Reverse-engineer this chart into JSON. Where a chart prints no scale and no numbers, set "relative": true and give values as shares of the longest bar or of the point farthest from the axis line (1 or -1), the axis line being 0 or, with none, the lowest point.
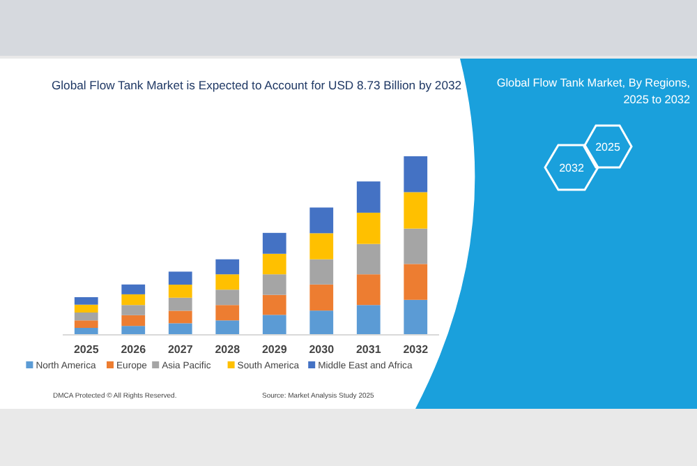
{
  "chart_data": {
    "type": "bar",
    "stacked": true,
    "relative": true,
    "title": "Global Flow Tank Market is Expected to Account for USD 8.73 Billion by 2032",
    "subtitle": "Global Flow Tank Market, By Regions, 2025 to 2032",
    "categories": [
      "2025",
      "2026",
      "2027",
      "2028",
      "2029",
      "2030",
      "2031",
      "2032"
    ],
    "series": [
      {
        "name": "North America",
        "color": "#5b9bd5",
        "values": [
          0.039,
          0.05,
          0.065,
          0.081,
          0.112,
          0.136,
          0.167,
          0.196
        ]
      },
      {
        "name": "Europe",
        "color": "#ed7d31",
        "values": [
          0.042,
          0.06,
          0.07,
          0.086,
          0.112,
          0.146,
          0.172,
          0.201
        ]
      },
      {
        "name": "Asia Pacific",
        "color": "#a5a5a5",
        "values": [
          0.044,
          0.057,
          0.073,
          0.086,
          0.115,
          0.141,
          0.17,
          0.198
        ]
      },
      {
        "name": "South America",
        "color": "#ffc000",
        "values": [
          0.044,
          0.06,
          0.073,
          0.086,
          0.115,
          0.146,
          0.175,
          0.204
        ]
      },
      {
        "name": "Middle East and Africa",
        "color": "#4472c4",
        "values": [
          0.042,
          0.055,
          0.073,
          0.084,
          0.117,
          0.144,
          0.175,
          0.201
        ]
      }
    ],
    "legend": "bottom",
    "annotations": [
      "2032",
      "2025",
      "DMCA Protected © All Rights Reserved.",
      "Source: Market Analysis Study 2025"
    ]
  }
}
